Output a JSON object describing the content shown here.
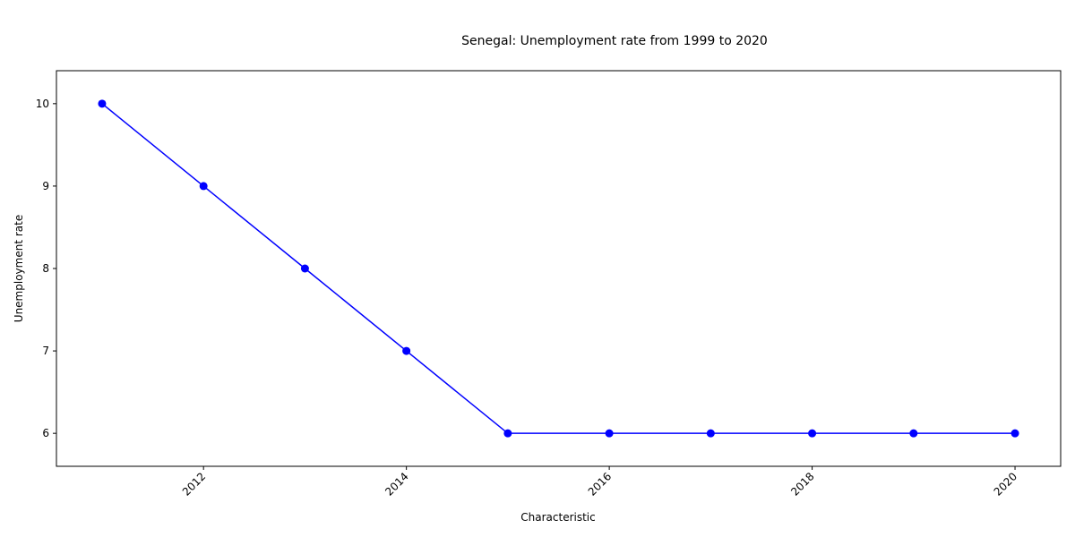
{
  "chart_data": {
    "type": "line",
    "title": "Senegal: Unemployment rate from 1999 to 2020",
    "xlabel": "Characteristic",
    "ylabel": "Unemployment rate",
    "x": [
      2011,
      2012,
      2013,
      2014,
      2015,
      2016,
      2017,
      2018,
      2019,
      2020
    ],
    "series": [
      {
        "values": [
          10,
          9,
          8,
          7,
          6,
          6,
          6,
          6,
          6,
          6
        ],
        "color": "#0000ff",
        "marker": "circle"
      }
    ],
    "xlim": [
      2010.55,
      2020.45
    ],
    "ylim": [
      5.6,
      10.4
    ],
    "xticks": [
      2012,
      2014,
      2016,
      2018,
      2020
    ],
    "yticks": [
      6,
      7,
      8,
      9,
      10
    ],
    "xtick_rotation": 45,
    "grid": false,
    "legend": "none"
  }
}
